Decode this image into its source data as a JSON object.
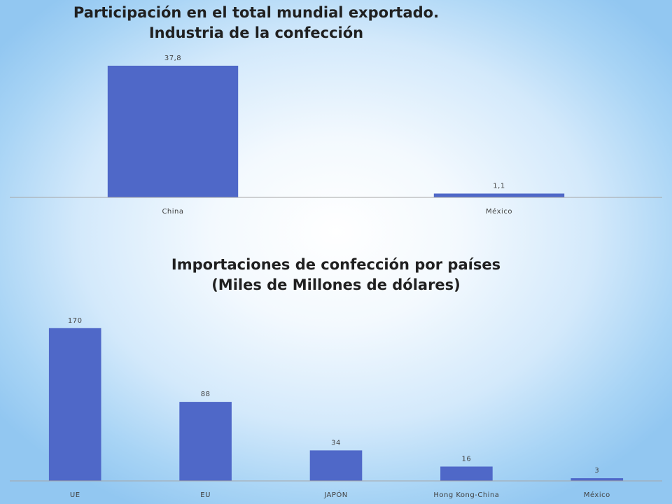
{
  "chart_data": [
    {
      "type": "bar",
      "title": "Participación en el total mundial exportado.",
      "subtitle": "Industria de la confección",
      "categories": [
        "China",
        "México"
      ],
      "values": [
        37.8,
        1.1
      ],
      "data_labels": [
        "37,8",
        "1,1"
      ],
      "ylim": [
        0,
        40
      ],
      "grid": false,
      "legend": "none",
      "bar_color": "#4f68c8"
    },
    {
      "type": "bar",
      "title": "Importaciones de confección por países",
      "subtitle": "(Miles de Millones de dólares)",
      "categories": [
        "UE",
        "EU",
        "JAPÓN",
        "Hong Kong-China",
        "México"
      ],
      "values": [
        170,
        88,
        34,
        16,
        3
      ],
      "data_labels": [
        "170",
        "88",
        "34",
        "16",
        "3"
      ],
      "ylim": [
        0,
        180
      ],
      "grid": false,
      "legend": "none",
      "bar_color": "#4f68c8"
    }
  ]
}
